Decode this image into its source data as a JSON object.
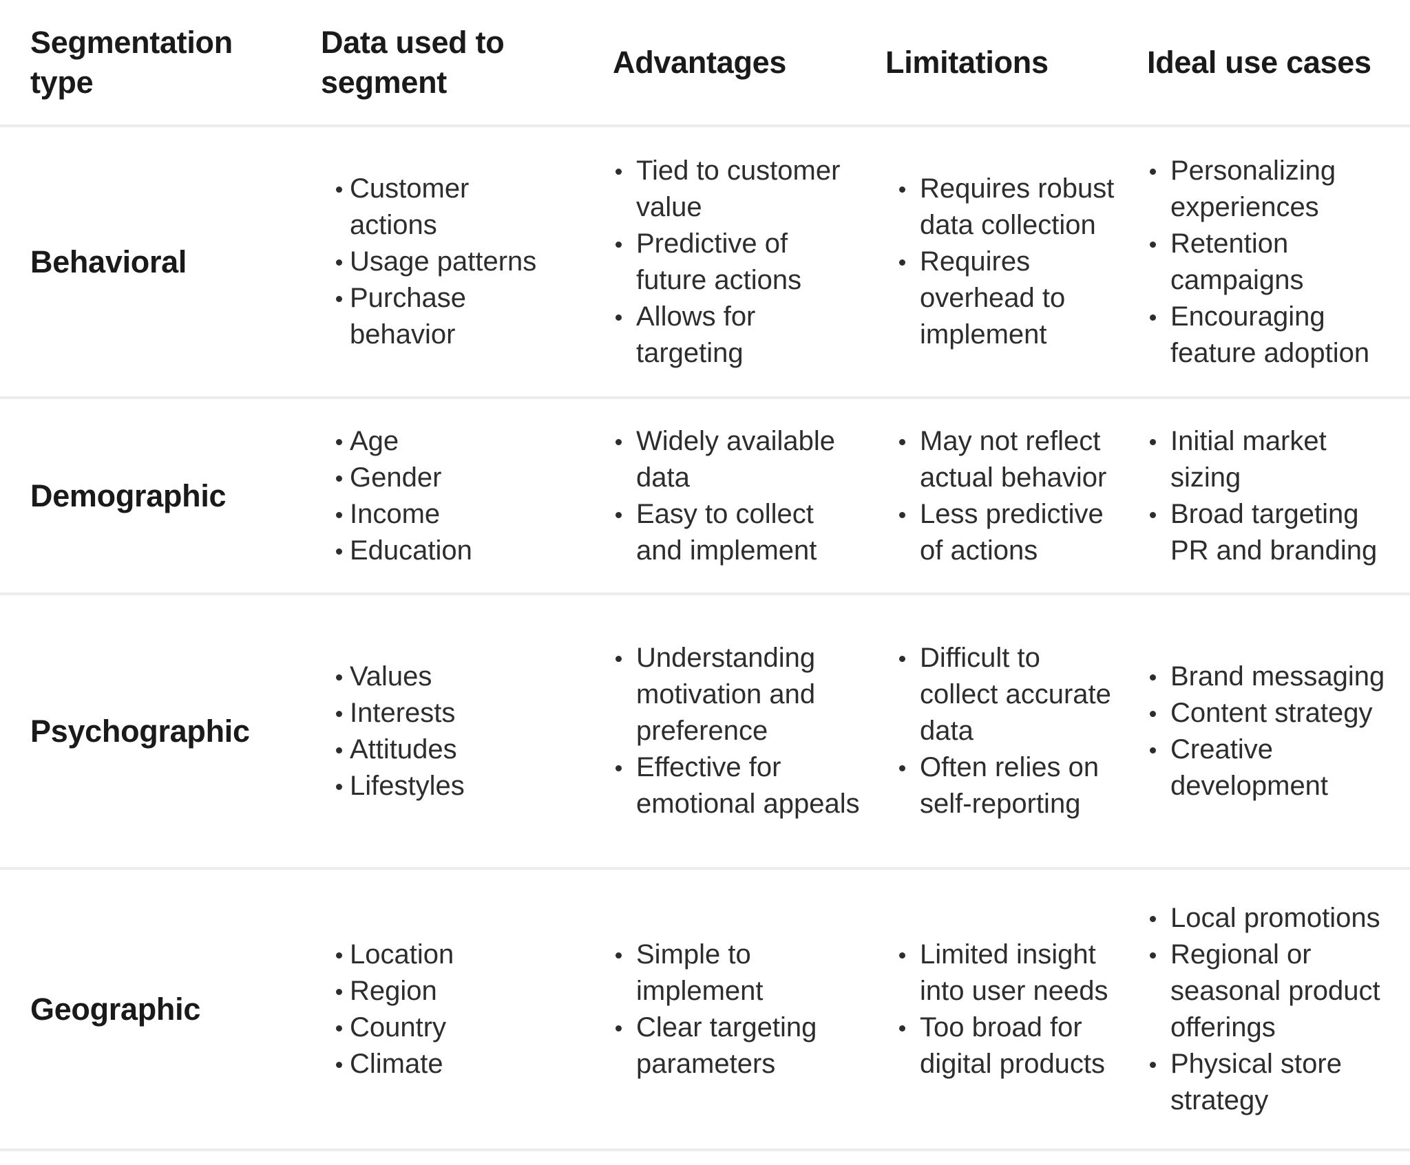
{
  "table": {
    "columns": [
      "Segmentation type",
      "Data used to segment",
      "Advantages",
      "Limitations",
      "Ideal use cases"
    ],
    "rows": [
      {
        "type": "Behavioral",
        "data": [
          "Customer actions",
          "Usage patterns",
          "Purchase behavior"
        ],
        "advantages": [
          "Tied to customer value",
          "Predictive of future actions",
          "Allows for targeting"
        ],
        "limitations": [
          "Requires robust data collection",
          "Requires overhead to implement"
        ],
        "use_cases": [
          "Personalizing experiences",
          "Retention campaigns",
          "Encouraging feature adoption"
        ]
      },
      {
        "type": "Demographic",
        "data": [
          "Age",
          "Gender",
          "Income",
          "Education"
        ],
        "advantages": [
          "Widely available data",
          "Easy to collect and implement"
        ],
        "limitations": [
          "May not reflect actual behavior",
          "Less predictive of actions"
        ],
        "use_cases": [
          "Initial market sizing",
          "Broad targeting PR and branding"
        ]
      },
      {
        "type": "Psychographic",
        "data": [
          "Values",
          "Interests",
          "Attitudes",
          "Lifestyles"
        ],
        "advantages": [
          "Understanding motivation and preference",
          "Effective for emotional appeals"
        ],
        "limitations": [
          "Difficult to collect accurate data",
          "Often relies on self-reporting"
        ],
        "use_cases": [
          "Brand messaging",
          "Content strategy",
          "Creative development"
        ]
      },
      {
        "type": "Geographic",
        "data": [
          "Location",
          "Region",
          "Country",
          "Climate"
        ],
        "advantages": [
          "Simple to implement",
          "Clear targeting parameters"
        ],
        "limitations": [
          "Limited insight into user needs",
          "Too broad for digital products"
        ],
        "use_cases": [
          "Local promotions",
          "Regional or seasonal product offerings",
          "Physical store strategy"
        ]
      }
    ]
  },
  "colors": {
    "heading_text": "#1a1a1a",
    "body_text": "#2d2d2d",
    "divider": "#ececec",
    "background": "#ffffff"
  }
}
